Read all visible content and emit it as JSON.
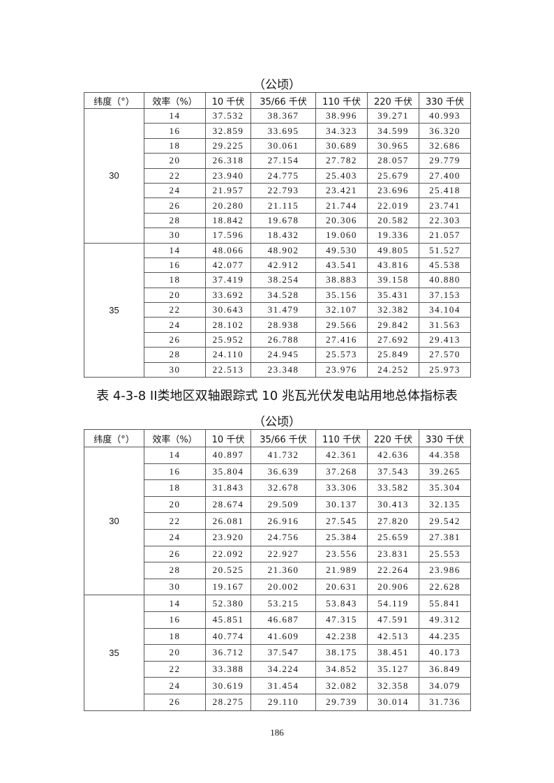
{
  "table1": {
    "unit": "（公顷）",
    "headers": [
      "纬度（°）",
      "效率（%）",
      "10 千伏",
      "35/66 千伏",
      "110 千伏",
      "220 千伏",
      "330 千伏"
    ],
    "groups": [
      {
        "latitude": "30",
        "rows": [
          [
            "14",
            "37.532",
            "38.367",
            "38.996",
            "39.271",
            "40.993"
          ],
          [
            "16",
            "32.859",
            "33.695",
            "34.323",
            "34.599",
            "36.320"
          ],
          [
            "18",
            "29.225",
            "30.061",
            "30.689",
            "30.965",
            "32.686"
          ],
          [
            "20",
            "26.318",
            "27.154",
            "27.782",
            "28.057",
            "29.779"
          ],
          [
            "22",
            "23.940",
            "24.775",
            "25.403",
            "25.679",
            "27.400"
          ],
          [
            "24",
            "21.957",
            "22.793",
            "23.421",
            "23.696",
            "25.418"
          ],
          [
            "26",
            "20.280",
            "21.115",
            "21.744",
            "22.019",
            "23.741"
          ],
          [
            "28",
            "18.842",
            "19.678",
            "20.306",
            "20.582",
            "22.303"
          ],
          [
            "30",
            "17.596",
            "18.432",
            "19.060",
            "19.336",
            "21.057"
          ]
        ]
      },
      {
        "latitude": "35",
        "rows": [
          [
            "14",
            "48.066",
            "48.902",
            "49.530",
            "49.805",
            "51.527"
          ],
          [
            "16",
            "42.077",
            "42.912",
            "43.541",
            "43.816",
            "45.538"
          ],
          [
            "18",
            "37.419",
            "38.254",
            "38.883",
            "39.158",
            "40.880"
          ],
          [
            "20",
            "33.692",
            "34.528",
            "35.156",
            "35.431",
            "37.153"
          ],
          [
            "22",
            "30.643",
            "31.479",
            "32.107",
            "32.382",
            "34.104"
          ],
          [
            "24",
            "28.102",
            "28.938",
            "29.566",
            "29.842",
            "31.563"
          ],
          [
            "26",
            "25.952",
            "26.788",
            "27.416",
            "27.692",
            "29.413"
          ],
          [
            "28",
            "24.110",
            "24.945",
            "25.573",
            "25.849",
            "27.570"
          ],
          [
            "30",
            "22.513",
            "23.348",
            "23.976",
            "24.252",
            "25.973"
          ]
        ]
      }
    ]
  },
  "table2": {
    "title": "表 4-3-8  II类地区双轴跟踪式 10 兆瓦光伏发电站用地总体指标表",
    "unit": "（公顷）",
    "headers": [
      "纬度（°）",
      "效率（%）",
      "10 千伏",
      "35/66 千伏",
      "110 千伏",
      "220 千伏",
      "330 千伏"
    ],
    "groups": [
      {
        "latitude": "30",
        "rows": [
          [
            "14",
            "40.897",
            "41.732",
            "42.361",
            "42.636",
            "44.358"
          ],
          [
            "16",
            "35.804",
            "36.639",
            "37.268",
            "37.543",
            "39.265"
          ],
          [
            "18",
            "31.843",
            "32.678",
            "33.306",
            "33.582",
            "35.304"
          ],
          [
            "20",
            "28.674",
            "29.509",
            "30.137",
            "30.413",
            "32.135"
          ],
          [
            "22",
            "26.081",
            "26.916",
            "27.545",
            "27.820",
            "29.542"
          ],
          [
            "24",
            "23.920",
            "24.756",
            "25.384",
            "25.659",
            "27.381"
          ],
          [
            "26",
            "22.092",
            "22.927",
            "23.556",
            "23.831",
            "25.553"
          ],
          [
            "28",
            "20.525",
            "21.360",
            "21.989",
            "22.264",
            "23.986"
          ],
          [
            "30",
            "19.167",
            "20.002",
            "20.631",
            "20.906",
            "22.628"
          ]
        ]
      },
      {
        "latitude": "35",
        "rows": [
          [
            "14",
            "52.380",
            "53.215",
            "53.843",
            "54.119",
            "55.841"
          ],
          [
            "16",
            "45.851",
            "46.687",
            "47.315",
            "47.591",
            "49.312"
          ],
          [
            "18",
            "40.774",
            "41.609",
            "42.238",
            "42.513",
            "44.235"
          ],
          [
            "20",
            "36.712",
            "37.547",
            "38.175",
            "38.451",
            "40.173"
          ],
          [
            "22",
            "33.388",
            "34.224",
            "34.852",
            "35.127",
            "36.849"
          ],
          [
            "24",
            "30.619",
            "31.454",
            "32.082",
            "32.358",
            "34.079"
          ],
          [
            "26",
            "28.275",
            "29.110",
            "29.739",
            "30.014",
            "31.736"
          ]
        ]
      }
    ]
  },
  "page_number": "186"
}
